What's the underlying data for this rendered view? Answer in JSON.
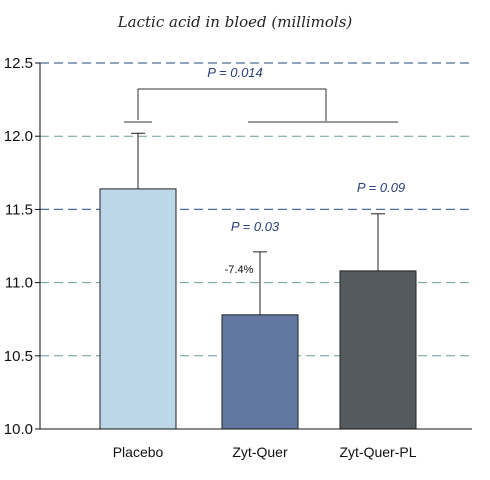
{
  "chart_data": {
    "type": "bar",
    "title": "Lactic acid in bloed (millimols)",
    "xlabel": "",
    "ylabel": "",
    "ylim": [
      10.0,
      12.5
    ],
    "yticks": [
      "10.0",
      "10.5",
      "11.0",
      "11.5",
      "12.0",
      "12.5"
    ],
    "grid": true,
    "categories": [
      "Placebo",
      "Zyt-Quer",
      "Zyt-Quer-PL"
    ],
    "values": [
      11.64,
      10.78,
      11.08
    ],
    "error_upper": [
      12.02,
      11.21,
      11.47
    ],
    "bar_colors": [
      "#bcd7e8",
      "#6278a0",
      "#555a5e"
    ],
    "annotations": {
      "p_main": "P = 0.014",
      "p_zyt_quer": "P = 0.03",
      "p_zyt_quer_pl": "P = 0.09",
      "pct_zyt_quer": "-7.4%"
    }
  }
}
